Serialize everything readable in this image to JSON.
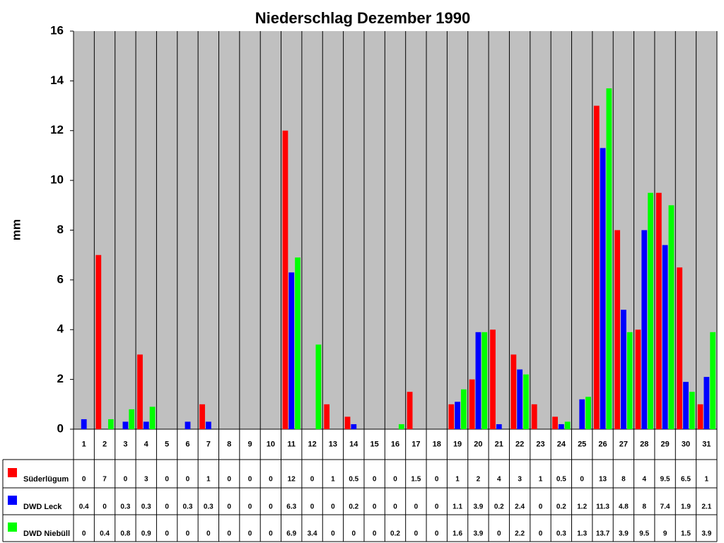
{
  "chart_data": {
    "type": "bar",
    "title": "Niederschlag Dezember 1990",
    "y_label": "mm",
    "categories": [
      "1",
      "2",
      "3",
      "4",
      "5",
      "6",
      "7",
      "8",
      "9",
      "10",
      "11",
      "12",
      "13",
      "14",
      "15",
      "16",
      "17",
      "18",
      "19",
      "20",
      "21",
      "22",
      "23",
      "24",
      "25",
      "26",
      "27",
      "28",
      "29",
      "30",
      "31"
    ],
    "series": [
      {
        "name": "Süderlügum",
        "color": "#ff0000",
        "values": [
          0,
          7,
          0,
          3,
          0,
          0,
          1,
          0,
          0,
          0,
          12,
          0,
          1,
          0.5,
          0,
          0,
          1.5,
          0,
          1,
          2,
          4,
          3,
          1,
          0.5,
          0,
          13,
          8,
          4,
          9.5,
          6.5,
          1
        ]
      },
      {
        "name": "DWD Leck",
        "color": "#0000ff",
        "values": [
          0.4,
          0,
          0.3,
          0.3,
          0,
          0.3,
          0.3,
          0,
          0,
          0,
          6.3,
          0,
          0,
          0.2,
          0,
          0,
          0,
          0,
          1.1,
          3.9,
          0.2,
          2.4,
          0,
          0.2,
          1.2,
          11.3,
          4.8,
          8,
          7.4,
          1.9,
          2.1
        ]
      },
      {
        "name": "DWD Niebüll",
        "color": "#00ff00",
        "values": [
          0,
          0.4,
          0.8,
          0.9,
          0,
          0,
          0,
          0,
          0,
          0,
          6.9,
          3.4,
          0,
          0,
          0,
          0.2,
          0,
          0,
          1.6,
          3.9,
          0,
          2.2,
          0,
          0.3,
          1.3,
          13.7,
          3.9,
          9.5,
          9,
          1.5,
          3.9
        ]
      }
    ],
    "ylim": [
      0,
      16
    ],
    "yticks": [
      0,
      2,
      4,
      6,
      8,
      10,
      12,
      14,
      16
    ],
    "grid": true,
    "plot_background": "#c0c0c0"
  }
}
